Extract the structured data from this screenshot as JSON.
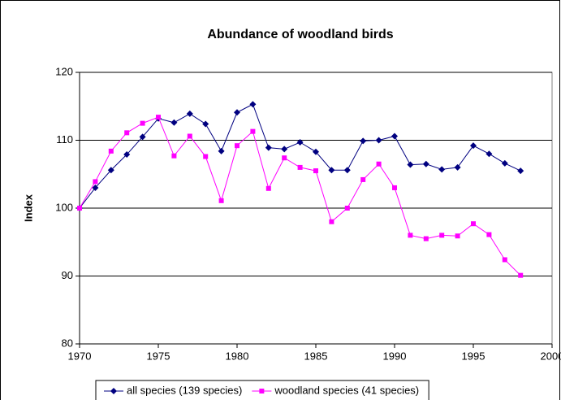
{
  "chart_data": {
    "type": "line",
    "title": "Abundance of woodland birds",
    "y_label": "Index",
    "x": [
      1970,
      1971,
      1972,
      1973,
      1974,
      1975,
      1976,
      1977,
      1978,
      1979,
      1980,
      1981,
      1982,
      1983,
      1984,
      1985,
      1986,
      1987,
      1988,
      1989,
      1990,
      1991,
      1992,
      1993,
      1994,
      1995,
      1996,
      1997,
      1998
    ],
    "series": [
      {
        "name": "all species (139 species)",
        "color": "#000080",
        "marker": "diamond",
        "values": [
          100,
          103,
          105.6,
          107.9,
          110.5,
          113.2,
          112.6,
          113.9,
          112.4,
          108.4,
          114.1,
          115.3,
          108.9,
          108.7,
          109.7,
          108.3,
          105.6,
          105.6,
          109.9,
          110,
          110.6,
          106.4,
          106.5,
          105.7,
          106,
          109.2,
          108,
          106.6,
          105.5
        ]
      },
      {
        "name": "woodland species (41 species)",
        "color": "#ff00ff",
        "marker": "square",
        "values": [
          100,
          103.9,
          108.4,
          111.1,
          112.5,
          113.4,
          107.7,
          110.6,
          107.6,
          101.1,
          109.2,
          111.3,
          102.9,
          107.4,
          106,
          105.5,
          98,
          100,
          104.2,
          106.5,
          103,
          96,
          95.5,
          96,
          95.9,
          97.7,
          96.1,
          92.4,
          90.1
        ]
      }
    ],
    "xlim": [
      1970,
      2000
    ],
    "xticks": [
      1970,
      1975,
      1980,
      1985,
      1990,
      1995,
      2000
    ],
    "ylim": [
      80,
      120
    ],
    "yticks": [
      80,
      90,
      100,
      110,
      120
    ],
    "grid": true,
    "legend": "bottom"
  }
}
